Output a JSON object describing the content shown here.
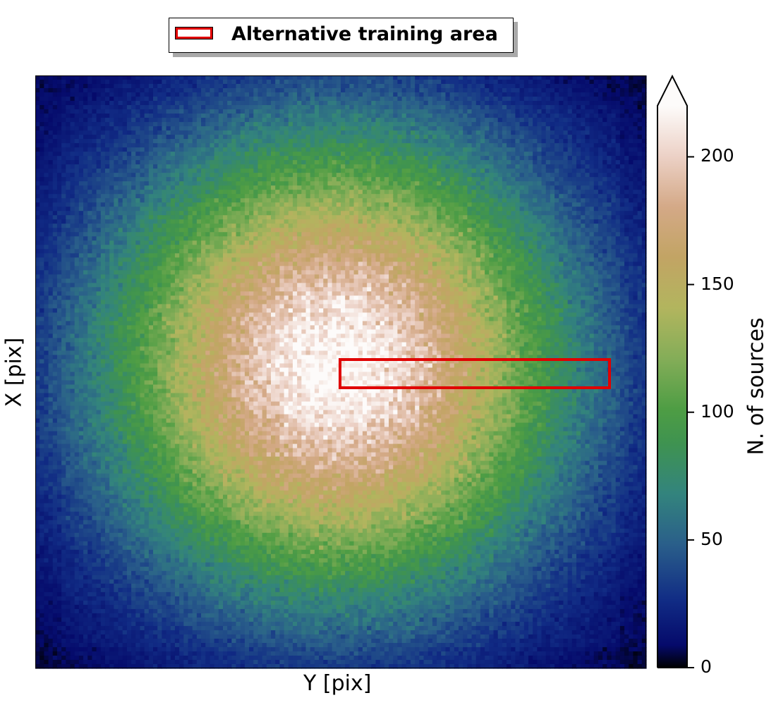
{
  "chart_data": {
    "type": "heatmap",
    "title": "",
    "xlabel": "Y [pix]",
    "ylabel": "X [pix]",
    "x_ticks": [],
    "y_ticks": [],
    "grid": false,
    "colormap": "gist_earth",
    "colorbar": {
      "label": "N. of sources",
      "range": [
        0,
        220
      ],
      "ticks": [
        "0",
        "50",
        "100",
        "150",
        "200"
      ],
      "extend": "max"
    },
    "distribution": {
      "shape": "radially symmetric peak",
      "peak_value": 220,
      "falls_to_zero_at_edges": true
    },
    "overlay": {
      "type": "rectangle",
      "label": "Alternative training area",
      "edge_color": "#e00000",
      "face_color": "none"
    },
    "legend": {
      "placement": "top-center",
      "entries": [
        "Alternative training area"
      ]
    }
  }
}
